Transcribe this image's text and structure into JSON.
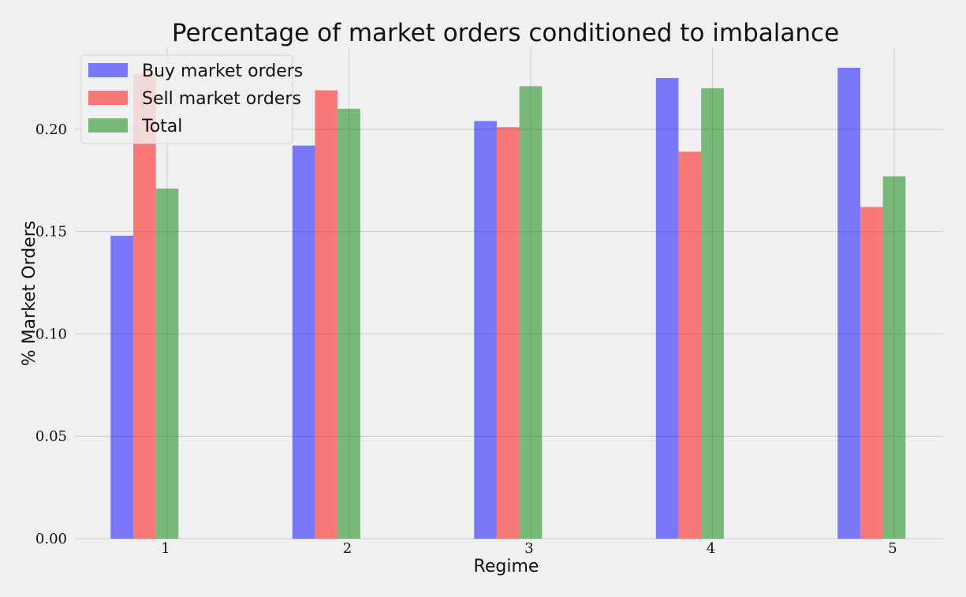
{
  "chart_data": {
    "type": "bar",
    "title": "Percentage of market orders conditioned to imbalance",
    "xlabel": "Regime",
    "ylabel": "% Market Orders",
    "categories": [
      "1",
      "2",
      "3",
      "4",
      "5"
    ],
    "series": [
      {
        "name": "Buy market orders",
        "color": "#0000ff",
        "values": [
          0.148,
          0.192,
          0.204,
          0.225,
          0.23
        ]
      },
      {
        "name": "Sell market orders",
        "color": "#ff0000",
        "values": [
          0.227,
          0.219,
          0.201,
          0.189,
          0.162
        ]
      },
      {
        "name": "Total",
        "color": "#008000",
        "values": [
          0.171,
          0.21,
          0.221,
          0.22,
          0.177
        ]
      }
    ],
    "ylim": [
      0.0,
      0.24
    ],
    "yticks": [
      "0.00",
      "0.05",
      "0.10",
      "0.15",
      "0.20"
    ],
    "ytick_values": [
      0.0,
      0.05,
      0.1,
      0.15,
      0.2
    ],
    "bar_opacity": 0.5,
    "grid": true,
    "legend_position": "top-left",
    "background": "#f0f0f0"
  }
}
